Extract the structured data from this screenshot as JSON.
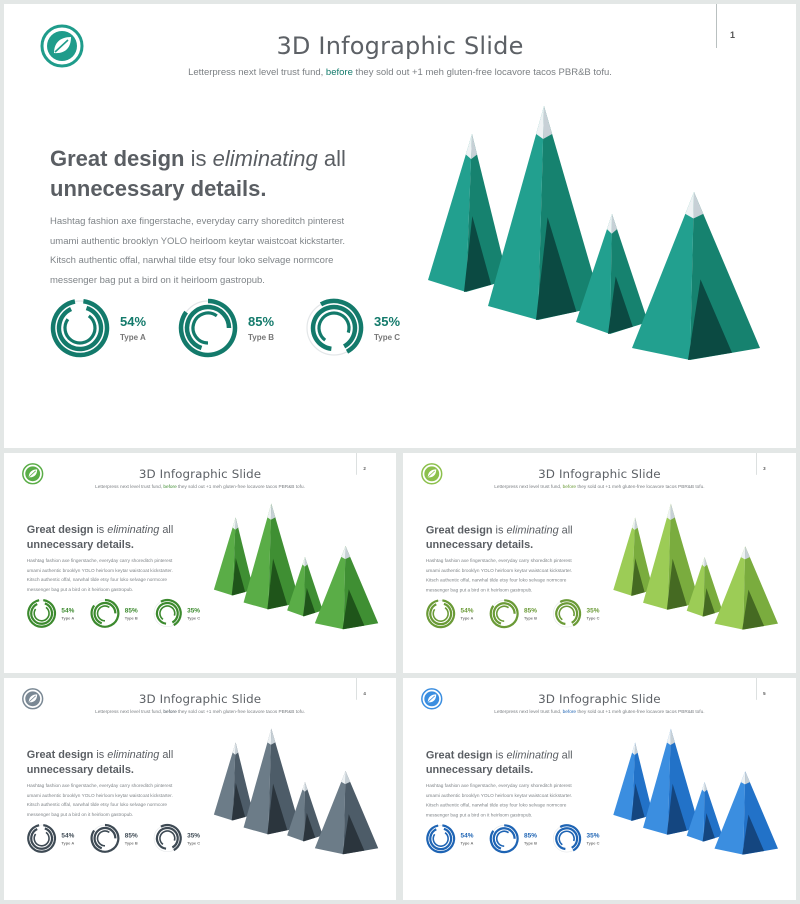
{
  "slides": [
    {
      "page": "1",
      "title": "3D Infographic Slide",
      "subtitle_pre": "Letterpress next level trust fund,",
      "subtitle_hl": "before",
      "subtitle_post": "they sold out +1 meh gluten-free locavore tacos PBR&B tofu.",
      "headline": {
        "bold1": "Great design",
        "light1": " is ",
        "italic": "eliminating",
        "light2": " all",
        "bold2": "unnecessary details."
      },
      "body": "Hashtag fashion axe fingerstache, everyday carry shoreditch pinterest umami authentic brooklyn YOLO heirloom keytar waistcoat kickstarter. Kitsch authentic offal, narwhal tilde etsy four loko selvage normcore messenger bag put a bird on it heirloom gastropub.",
      "stats": [
        {
          "value": "54%",
          "label": "Type A",
          "fraction": 0.54
        },
        {
          "value": "85%",
          "label": "Type B",
          "fraction": 0.85
        },
        {
          "value": "35%",
          "label": "Type C",
          "fraction": 0.35
        }
      ],
      "colors": {
        "accent": "#137a6b",
        "light": "#22a08f",
        "mid": "#16826f",
        "dark": "#0d5a50",
        "shadow": "#0b4a42",
        "logo": "#1f9c8b"
      }
    },
    {
      "page": "2",
      "title": "3D Infographic Slide",
      "subtitle_pre": "Letterpress next level trust fund,",
      "subtitle_hl": "before",
      "subtitle_post": "they sold out +1 meh gluten-free locavore tacos PBR&B tofu.",
      "headline": {
        "bold1": "Great design",
        "light1": " is ",
        "italic": "eliminating",
        "light2": " all",
        "bold2": "unnecessary details."
      },
      "body": "Hashtag fashion axe fingerstache, everyday carry shoreditch pinterest umami authentic brooklyn YOLO heirloom keytar waistcoat kickstarter. Kitsch authentic offal, narwhal tilde etsy four loko selvage normcore messenger bag put a bird on it heirloom gastropub.",
      "stats": [
        {
          "value": "54%",
          "label": "Type A",
          "fraction": 0.54
        },
        {
          "value": "85%",
          "label": "Type B",
          "fraction": 0.85
        },
        {
          "value": "35%",
          "label": "Type C",
          "fraction": 0.35
        }
      ],
      "colors": {
        "accent": "#3c8a2e",
        "light": "#5aad47",
        "mid": "#3f8f33",
        "dark": "#2a6a22",
        "shadow": "#1f551a",
        "logo": "#5aad47"
      }
    },
    {
      "page": "3",
      "title": "3D Infographic Slide",
      "subtitle_pre": "Letterpress next level trust fund,",
      "subtitle_hl": "before",
      "subtitle_post": "they sold out +1 meh gluten-free locavore tacos PBR&B tofu.",
      "headline": {
        "bold1": "Great design",
        "light1": " is ",
        "italic": "eliminating",
        "light2": " all",
        "bold2": "unnecessary details."
      },
      "body": "Hashtag fashion axe fingerstache, everyday carry shoreditch pinterest umami authentic brooklyn YOLO heirloom keytar waistcoat kickstarter. Kitsch authentic offal, narwhal tilde etsy four loko selvage normcore messenger bag put a bird on it heirloom gastropub.",
      "stats": [
        {
          "value": "54%",
          "label": "Type A",
          "fraction": 0.54
        },
        {
          "value": "85%",
          "label": "Type B",
          "fraction": 0.85
        },
        {
          "value": "35%",
          "label": "Type C",
          "fraction": 0.35
        }
      ],
      "colors": {
        "accent": "#6a9a36",
        "light": "#9ccc56",
        "mid": "#7aac3e",
        "dark": "#557f2c",
        "shadow": "#456a22",
        "logo": "#8cc04c"
      }
    },
    {
      "page": "4",
      "title": "3D Infographic Slide",
      "subtitle_pre": "Letterpress next level trust fund,",
      "subtitle_hl": "before",
      "subtitle_post": "they sold out +1 meh gluten-free locavore tacos PBR&B tofu.",
      "headline": {
        "bold1": "Great design",
        "light1": " is ",
        "italic": "eliminating",
        "light2": " all",
        "bold2": "unnecessary details."
      },
      "body": "Hashtag fashion axe fingerstache, everyday carry shoreditch pinterest umami authentic brooklyn YOLO heirloom keytar waistcoat kickstarter. Kitsch authentic offal, narwhal tilde etsy four loko selvage normcore messenger bag put a bird on it heirloom gastropub.",
      "stats": [
        {
          "value": "54%",
          "label": "Type A",
          "fraction": 0.54
        },
        {
          "value": "85%",
          "label": "Type B",
          "fraction": 0.85
        },
        {
          "value": "35%",
          "label": "Type C",
          "fraction": 0.35
        }
      ],
      "colors": {
        "accent": "#3e4a54",
        "light": "#6c7c88",
        "mid": "#4d5c68",
        "dark": "#37434c",
        "shadow": "#2b353d",
        "logo": "#7a8894"
      }
    },
    {
      "page": "5",
      "title": "3D Infographic Slide",
      "subtitle_pre": "Letterpress next level trust fund,",
      "subtitle_hl": "before",
      "subtitle_post": "they sold out +1 meh gluten-free locavore tacos PBR&B tofu.",
      "headline": {
        "bold1": "Great design",
        "light1": " is ",
        "italic": "eliminating",
        "light2": " all",
        "bold2": "unnecessary details."
      },
      "body": "Hashtag fashion axe fingerstache, everyday carry shoreditch pinterest umami authentic brooklyn YOLO heirloom keytar waistcoat kickstarter. Kitsch authentic offal, narwhal tilde etsy four loko selvage normcore messenger bag put a bird on it heirloom gastropub.",
      "stats": [
        {
          "value": "54%",
          "label": "Type A",
          "fraction": 0.54
        },
        {
          "value": "85%",
          "label": "Type B",
          "fraction": 0.85
        },
        {
          "value": "35%",
          "label": "Type C",
          "fraction": 0.35
        }
      ],
      "colors": {
        "accent": "#1e64b4",
        "light": "#3b8ee0",
        "mid": "#2272c8",
        "dark": "#1a58a0",
        "shadow": "#144680",
        "logo": "#3b8ee0"
      }
    }
  ]
}
